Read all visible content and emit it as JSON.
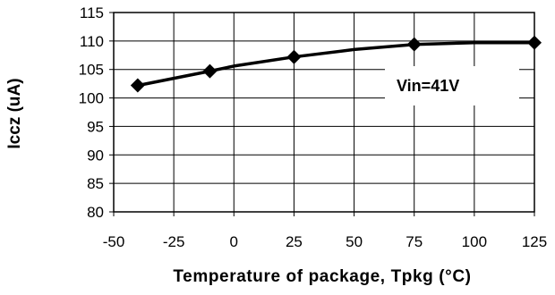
{
  "chart_data": {
    "type": "line",
    "title": "",
    "xlabel": "Temperature of package,  Tpkg (°C)",
    "ylabel": "Iccz (uA)",
    "xlim": [
      -50,
      125
    ],
    "ylim": [
      80,
      115
    ],
    "x_ticks": [
      -50,
      -25,
      0,
      25,
      50,
      75,
      100,
      125
    ],
    "y_ticks": [
      80,
      85,
      90,
      95,
      100,
      105,
      110,
      115
    ],
    "grid": true,
    "legend": "none",
    "series": [
      {
        "x": [
          -40,
          -10,
          25,
          75,
          125
        ],
        "y": [
          102.2,
          104.7,
          107.2,
          109.4,
          109.7
        ],
        "line_x": [
          -40,
          -10,
          0,
          25,
          50,
          75,
          100,
          125
        ],
        "line_y": [
          102.2,
          104.7,
          105.6,
          107.2,
          108.5,
          109.4,
          109.7,
          109.7
        ],
        "color": "#000000",
        "marker": "diamond"
      }
    ],
    "annotations": [
      {
        "text": "Vin=41V"
      }
    ]
  }
}
